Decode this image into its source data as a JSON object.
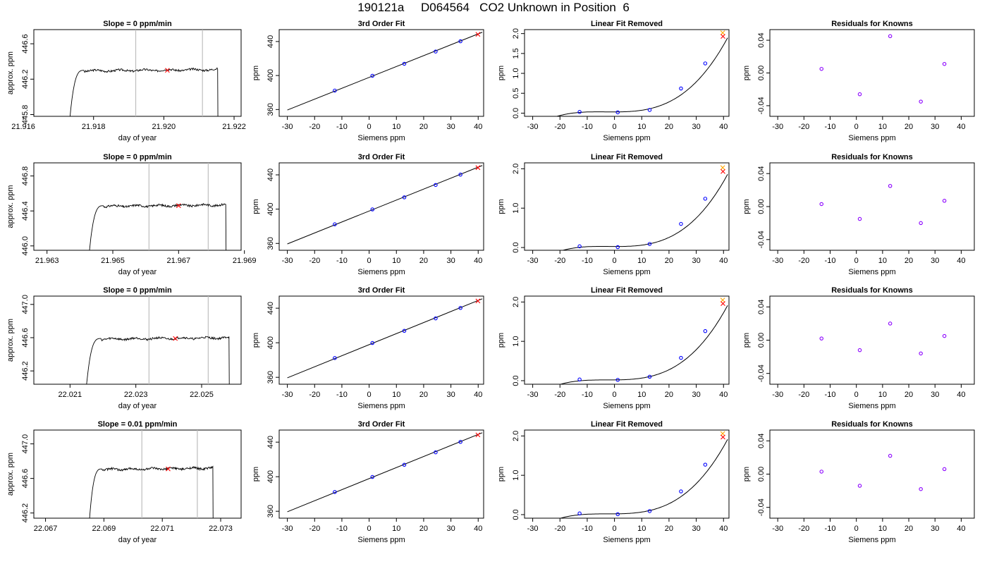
{
  "figure": {
    "title": "190121a     D064564   CO2 Unknown in Position  6"
  },
  "colors": {
    "trace": "#000000",
    "known_point": "#0000ff",
    "residual_point": "#8b00ff",
    "unknown_point": "#ff0000",
    "unknown_alt": "#ffa500",
    "window_line": "#bebebe",
    "fit_line": "#000000"
  },
  "chart_data": [
    {
      "panel": "row1-trace",
      "type": "line",
      "title": "Slope =  0  ppm/min",
      "xlabel": "day of year",
      "ylabel": "approx. ppm",
      "xlim": [
        21.9163,
        21.9222
      ],
      "ylim": [
        445.78,
        446.76
      ],
      "xticks": [
        21.916,
        21.918,
        21.92,
        21.922
      ],
      "xtick_labels": [
        "21.916",
        "21.918",
        "21.920",
        "21.922"
      ],
      "yticks": [
        445.8,
        446.2,
        446.6
      ],
      "ytick_labels": [
        "445.8",
        "446.2",
        "446.6"
      ],
      "window": [
        21.9192,
        21.9211
      ],
      "unknown_point": [
        21.9201,
        446.3
      ],
      "trace": {
        "start": 21.9172,
        "end": 21.9216,
        "plateau": 446.3,
        "drop_to": 445.0
      }
    },
    {
      "panel": "row1-fit",
      "type": "scatter",
      "title": "3rd Order Fit",
      "xlabel": "Siemens ppm",
      "ylabel": "ppm",
      "xlim": [
        -33,
        42
      ],
      "ylim": [
        352,
        454
      ],
      "xticks": [
        -30,
        -20,
        -10,
        0,
        10,
        20,
        30,
        40
      ],
      "yticks": [
        360,
        400,
        440
      ],
      "fit_line": [
        [
          -30,
          359.4
        ],
        [
          41.5,
          450.9
        ]
      ],
      "knowns": [
        [
          -12.6,
          382.3
        ],
        [
          1.2,
          399.7
        ],
        [
          12.9,
          413.8
        ],
        [
          24.4,
          428.2
        ],
        [
          33.5,
          440.3
        ]
      ],
      "unknown": [
        [
          39.9,
          448.4
        ]
      ]
    },
    {
      "panel": "row1-linfit",
      "type": "line",
      "title": "Linear Fit Removed",
      "xlabel": "Siemens ppm",
      "ylabel": "ppm",
      "xlim": [
        -33,
        42
      ],
      "ylim": [
        -0.08,
        2.1
      ],
      "xticks": [
        -30,
        -20,
        -10,
        0,
        10,
        20,
        30,
        40
      ],
      "yticks": [
        0,
        0.5,
        1,
        1.5,
        2
      ],
      "ytick_labels": [
        "0.0",
        "0.5",
        "1.0",
        "1.5",
        "2.0"
      ],
      "curve_coef": [
        0.03105,
        8e-05,
        0.0002,
        2.12e-05
      ],
      "knowns": [
        [
          -12.8,
          0.03
        ],
        [
          1.2,
          0.02
        ],
        [
          12.9,
          0.08
        ],
        [
          24.4,
          0.62
        ],
        [
          33.3,
          1.25
        ]
      ],
      "unknown": [
        [
          39.8,
          1.93
        ]
      ],
      "unknown_alt": [
        [
          39.7,
          2.02
        ]
      ]
    },
    {
      "panel": "row1-resid",
      "type": "scatter",
      "title": "Residuals for Knowns",
      "xlabel": "Siemens ppm",
      "ylabel": "ppm",
      "xlim": [
        -33,
        45
      ],
      "ylim": [
        -0.053,
        0.053
      ],
      "xticks": [
        -30,
        -20,
        -10,
        0,
        10,
        20,
        30,
        40
      ],
      "yticks": [
        -0.04,
        0,
        0.04
      ],
      "ytick_labels": [
        "-0.04",
        "0.00",
        "0.04"
      ],
      "points": [
        [
          -13.3,
          0.005
        ],
        [
          1.3,
          -0.026
        ],
        [
          12.9,
          0.045
        ],
        [
          24.6,
          -0.035
        ],
        [
          33.6,
          0.011
        ]
      ]
    },
    {
      "panel": "row2-trace",
      "type": "line",
      "title": "Slope =  0  ppm/min",
      "xlabel": "day of year",
      "ylabel": "approx. ppm",
      "xlim": [
        21.9626,
        21.9689
      ],
      "ylim": [
        445.95,
        446.95
      ],
      "xticks": [
        21.963,
        21.965,
        21.967,
        21.969
      ],
      "xtick_labels": [
        "21.963",
        "21.965",
        "21.967",
        "21.969"
      ],
      "yticks": [
        446.0,
        446.4,
        446.8
      ],
      "ytick_labels": [
        "446.0",
        "446.4",
        "446.8"
      ],
      "window": [
        21.9661,
        21.9679
      ],
      "unknown_point": [
        21.967,
        446.46
      ],
      "trace": {
        "start": 21.9642,
        "end": 21.9685,
        "plateau": 446.46,
        "drop_to": 445.5
      }
    },
    {
      "panel": "row2-fit",
      "type": "scatter",
      "title": "3rd Order Fit",
      "xlabel": "Siemens ppm",
      "ylabel": "ppm",
      "xlim": [
        -33,
        42
      ],
      "ylim": [
        352,
        454
      ],
      "xticks": [
        -30,
        -20,
        -10,
        0,
        10,
        20,
        30,
        40
      ],
      "yticks": [
        360,
        400,
        440
      ],
      "fit_line": [
        [
          -30,
          359.4
        ],
        [
          41.5,
          450.9
        ]
      ],
      "knowns": [
        [
          -12.6,
          382.3
        ],
        [
          1.2,
          399.7
        ],
        [
          12.9,
          413.8
        ],
        [
          24.4,
          428.2
        ],
        [
          33.5,
          440.3
        ]
      ],
      "unknown": [
        [
          39.9,
          448.4
        ]
      ]
    },
    {
      "panel": "row2-linfit",
      "type": "line",
      "title": "Linear Fit Removed",
      "xlabel": "Siemens ppm",
      "ylabel": "ppm",
      "xlim": [
        -33,
        42
      ],
      "ylim": [
        -0.07,
        2.15
      ],
      "xticks": [
        -30,
        -20,
        -10,
        0,
        10,
        20,
        30,
        40
      ],
      "yticks": [
        0,
        1,
        2
      ],
      "ytick_labels": [
        "0.0",
        "1.0",
        "2.0"
      ],
      "curve_coef": [
        0.0264,
        -0.00026,
        0.00014,
        2.24e-05
      ],
      "knowns": [
        [
          -12.8,
          0.03
        ],
        [
          1.2,
          0.01
        ],
        [
          12.9,
          0.09
        ],
        [
          24.4,
          0.6
        ],
        [
          33.3,
          1.24
        ]
      ],
      "unknown": [
        [
          39.8,
          1.93
        ]
      ],
      "unknown_alt": [
        [
          39.7,
          2.03
        ]
      ]
    },
    {
      "panel": "row2-resid",
      "type": "scatter",
      "title": "Residuals for Knowns",
      "xlabel": "Siemens ppm",
      "ylabel": "ppm",
      "xlim": [
        -33,
        45
      ],
      "ylim": [
        -0.053,
        0.053
      ],
      "xticks": [
        -30,
        -20,
        -10,
        0,
        10,
        20,
        30,
        40
      ],
      "yticks": [
        -0.04,
        0,
        0.04
      ],
      "ytick_labels": [
        "-0.04",
        "0.00",
        "0.04"
      ],
      "points": [
        [
          -13.3,
          0.003
        ],
        [
          1.3,
          -0.015
        ],
        [
          12.9,
          0.025
        ],
        [
          24.6,
          -0.02
        ],
        [
          33.6,
          0.007
        ]
      ]
    },
    {
      "panel": "row3-trace",
      "type": "line",
      "title": "Slope =  0  ppm/min",
      "xlabel": "day of year",
      "ylabel": "approx. ppm",
      "xlim": [
        22.0199,
        22.0262
      ],
      "ylim": [
        446.04,
        447.1
      ],
      "xticks": [
        22.021,
        22.023,
        22.025
      ],
      "xtick_labels": [
        "22.021",
        "22.023",
        "22.025"
      ],
      "yticks": [
        446.2,
        446.6,
        447.0
      ],
      "ytick_labels": [
        "446.2",
        "446.6",
        "447.0"
      ],
      "window": [
        22.0234,
        22.0252
      ],
      "unknown_point": [
        22.0242,
        446.59
      ],
      "trace": {
        "start": 22.0214,
        "end": 22.0259,
        "plateau": 446.59,
        "drop_to": 445.5
      }
    },
    {
      "panel": "row3-fit",
      "type": "scatter",
      "title": "3rd Order Fit",
      "xlabel": "Siemens ppm",
      "ylabel": "ppm",
      "xlim": [
        -33,
        42
      ],
      "ylim": [
        352,
        454
      ],
      "xticks": [
        -30,
        -20,
        -10,
        0,
        10,
        20,
        30,
        40
      ],
      "yticks": [
        360,
        400,
        440
      ],
      "fit_line": [
        [
          -30,
          359.4
        ],
        [
          41.5,
          450.9
        ]
      ],
      "knowns": [
        [
          -12.6,
          382.3
        ],
        [
          1.2,
          399.7
        ],
        [
          12.9,
          413.8
        ],
        [
          24.4,
          428.2
        ],
        [
          33.5,
          440.3
        ]
      ],
      "unknown": [
        [
          39.9,
          448.4
        ]
      ]
    },
    {
      "panel": "row3-linfit",
      "type": "line",
      "title": "Linear Fit Removed",
      "xlabel": "Siemens ppm",
      "ylabel": "ppm",
      "xlim": [
        -33,
        42
      ],
      "ylim": [
        -0.09,
        2.15
      ],
      "xticks": [
        -30,
        -20,
        -10,
        0,
        10,
        20,
        30,
        40
      ],
      "yticks": [
        0,
        1,
        2
      ],
      "ytick_labels": [
        "0.0",
        "1.0",
        "2.0"
      ],
      "curve_coef": [
        0.02,
        0.0006,
        0.00018,
        2.18e-05
      ],
      "knowns": [
        [
          -12.8,
          0.03
        ],
        [
          1.2,
          0.02
        ],
        [
          12.9,
          0.1
        ],
        [
          24.4,
          0.58
        ],
        [
          33.3,
          1.26
        ]
      ],
      "unknown": [
        [
          39.8,
          1.96
        ]
      ],
      "unknown_alt": [
        [
          39.7,
          2.05
        ]
      ]
    },
    {
      "panel": "row3-resid",
      "type": "scatter",
      "title": "Residuals for Knowns",
      "xlabel": "Siemens ppm",
      "ylabel": "ppm",
      "xlim": [
        -33,
        45
      ],
      "ylim": [
        -0.053,
        0.053
      ],
      "xticks": [
        -30,
        -20,
        -10,
        0,
        10,
        20,
        30,
        40
      ],
      "yticks": [
        -0.04,
        0,
        0.04
      ],
      "ytick_labels": [
        "-0.04",
        "0.00",
        "0.04"
      ],
      "points": [
        [
          -13.3,
          0.002
        ],
        [
          1.3,
          -0.012
        ],
        [
          12.9,
          0.02
        ],
        [
          24.6,
          -0.016
        ],
        [
          33.6,
          0.005
        ]
      ]
    },
    {
      "panel": "row4-trace",
      "type": "line",
      "title": "Slope =  0.01  ppm/min",
      "xlabel": "day of year",
      "ylabel": "approx. ppm",
      "xlim": [
        22.0666,
        22.0737
      ],
      "ylim": [
        446.14,
        447.16
      ],
      "xticks": [
        22.067,
        22.069,
        22.071,
        22.073
      ],
      "xtick_labels": [
        "22.067",
        "22.069",
        "22.071",
        "22.073"
      ],
      "yticks": [
        446.2,
        446.6,
        447.0
      ],
      "ytick_labels": [
        "446.2",
        "446.6",
        "447.0"
      ],
      "window": [
        22.0703,
        22.0722
      ],
      "unknown_point": [
        22.0712,
        446.71
      ],
      "trace": {
        "start": 22.0684,
        "end": 22.0728,
        "plateau": 446.71,
        "drop_to": 445.5
      }
    },
    {
      "panel": "row4-fit",
      "type": "scatter",
      "title": "3rd Order Fit",
      "xlabel": "Siemens ppm",
      "ylabel": "ppm",
      "xlim": [
        -33,
        42
      ],
      "ylim": [
        352,
        454
      ],
      "xticks": [
        -30,
        -20,
        -10,
        0,
        10,
        20,
        30,
        40
      ],
      "yticks": [
        360,
        400,
        440
      ],
      "fit_line": [
        [
          -30,
          359.4
        ],
        [
          41.5,
          450.9
        ]
      ],
      "knowns": [
        [
          -12.6,
          382.3
        ],
        [
          1.2,
          399.7
        ],
        [
          12.9,
          413.8
        ],
        [
          24.4,
          428.2
        ],
        [
          33.5,
          440.3
        ]
      ],
      "unknown": [
        [
          39.9,
          448.4
        ]
      ]
    },
    {
      "panel": "row4-linfit",
      "type": "line",
      "title": "Linear Fit Removed",
      "xlabel": "Siemens ppm",
      "ylabel": "ppm",
      "xlim": [
        -33,
        42
      ],
      "ylim": [
        -0.09,
        2.15
      ],
      "xticks": [
        -30,
        -20,
        -10,
        0,
        10,
        20,
        30,
        40
      ],
      "yticks": [
        0,
        1,
        2
      ],
      "ytick_labels": [
        "0.0",
        "1.0",
        "2.0"
      ],
      "curve_coef": [
        0.02,
        0.0006,
        0.00018,
        2.18e-05
      ],
      "knowns": [
        [
          -12.8,
          0.03
        ],
        [
          1.2,
          0.01
        ],
        [
          12.9,
          0.09
        ],
        [
          24.4,
          0.59
        ],
        [
          33.3,
          1.27
        ]
      ],
      "unknown": [
        [
          39.8,
          1.97
        ]
      ],
      "unknown_alt": [
        [
          39.7,
          2.06
        ]
      ]
    },
    {
      "panel": "row4-resid",
      "type": "scatter",
      "title": "Residuals for Knowns",
      "xlabel": "Siemens ppm",
      "ylabel": "ppm",
      "xlim": [
        -33,
        45
      ],
      "ylim": [
        -0.053,
        0.053
      ],
      "xticks": [
        -30,
        -20,
        -10,
        0,
        10,
        20,
        30,
        40
      ],
      "yticks": [
        -0.04,
        0,
        0.04
      ],
      "ytick_labels": [
        "-0.04",
        "0.00",
        "0.04"
      ],
      "points": [
        [
          -13.3,
          0.003
        ],
        [
          1.3,
          -0.014
        ],
        [
          12.9,
          0.022
        ],
        [
          24.6,
          -0.018
        ],
        [
          33.6,
          0.006
        ]
      ]
    }
  ]
}
